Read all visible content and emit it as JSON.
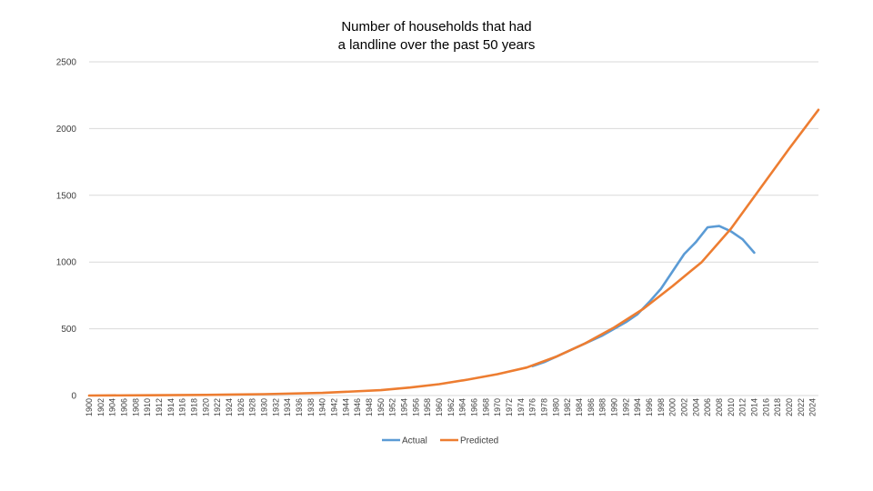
{
  "chart_data": {
    "type": "line",
    "title_lines": [
      "Number of households that had",
      "a landline over the past 50 years"
    ],
    "xlabel": "",
    "ylabel": "",
    "xlim": [
      1900,
      2025
    ],
    "ylim": [
      0,
      2500
    ],
    "yticks": [
      0,
      500,
      1000,
      1500,
      2000,
      2500
    ],
    "xticks": [
      1900,
      1902,
      1904,
      1906,
      1908,
      1910,
      1912,
      1914,
      1916,
      1918,
      1920,
      1922,
      1924,
      1926,
      1928,
      1930,
      1932,
      1934,
      1936,
      1938,
      1940,
      1942,
      1944,
      1946,
      1948,
      1950,
      1952,
      1954,
      1956,
      1958,
      1960,
      1962,
      1964,
      1966,
      1968,
      1970,
      1972,
      1974,
      1976,
      1978,
      1980,
      1982,
      1984,
      1986,
      1988,
      1990,
      1992,
      1994,
      1996,
      1998,
      2000,
      2002,
      2004,
      2006,
      2008,
      2010,
      2012,
      2014,
      2016,
      2018,
      2020,
      2022,
      2024
    ],
    "grid": true,
    "legend_position": "bottom",
    "series": [
      {
        "name": "Actual",
        "color": "#5B9BD5",
        "x": [
          1976,
          1978,
          1980,
          1982,
          1984,
          1986,
          1988,
          1990,
          1992,
          1994,
          1996,
          1998,
          2000,
          2002,
          2004,
          2006,
          2008,
          2010,
          2012,
          2014
        ],
        "y": [
          220,
          250,
          290,
          330,
          370,
          410,
          450,
          500,
          550,
          610,
          700,
          800,
          930,
          1060,
          1150,
          1260,
          1270,
          1230,
          1170,
          1070
        ]
      },
      {
        "name": "Predicted",
        "color": "#ED7D31",
        "x": [
          1900,
          1910,
          1920,
          1930,
          1940,
          1950,
          1955,
          1960,
          1965,
          1970,
          1975,
          1980,
          1985,
          1990,
          1995,
          2000,
          2005,
          2010,
          2015,
          2020,
          2025
        ],
        "y": [
          0,
          2,
          5,
          10,
          20,
          40,
          60,
          85,
          120,
          160,
          210,
          290,
          390,
          510,
          650,
          820,
          1000,
          1250,
          1550,
          1850,
          2140
        ]
      }
    ]
  }
}
